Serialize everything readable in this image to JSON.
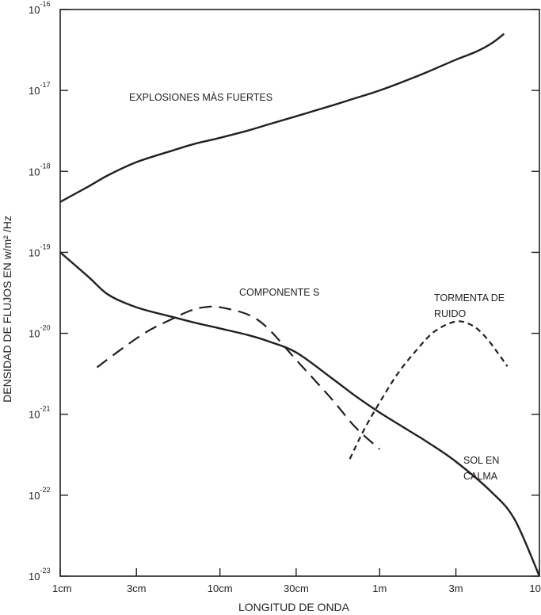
{
  "chart_data": {
    "type": "line",
    "xlabel": "LONGITUD DE ONDA",
    "ylabel": "DENSIDAD DE FLUJOS  EN   w/m² /Hz",
    "x_scale": "log",
    "y_scale": "log",
    "x_unit": "m",
    "xlim": [
      0.01,
      10
    ],
    "ylim": [
      1e-23,
      1e-16
    ],
    "grid": false,
    "legend": "none",
    "x_ticks": [
      {
        "value": 0.01,
        "label": "1cm"
      },
      {
        "value": 0.03,
        "label": "3cm"
      },
      {
        "value": 0.1,
        "label": "10cm"
      },
      {
        "value": 0.3,
        "label": "30cm"
      },
      {
        "value": 1,
        "label": "1m"
      },
      {
        "value": 3,
        "label": "3m"
      },
      {
        "value": 10,
        "label": "10m"
      }
    ],
    "y_ticks": [
      {
        "value": 1e-23,
        "base": "10",
        "exp": "-23"
      },
      {
        "value": 1e-22,
        "base": "10",
        "exp": "-22"
      },
      {
        "value": 1e-21,
        "base": "10",
        "exp": "-21"
      },
      {
        "value": 1e-20,
        "base": "10",
        "exp": "-20"
      },
      {
        "value": 1e-19,
        "base": "10",
        "exp": "-19"
      },
      {
        "value": 1e-18,
        "base": "10",
        "exp": "-18"
      },
      {
        "value": 1e-17,
        "base": "10",
        "exp": "-17"
      },
      {
        "value": 1e-16,
        "base": "10",
        "exp": "-16"
      }
    ],
    "series": [
      {
        "name": "EXPLOSIONES MÀS FUERTES",
        "label_lines": [
          "EXPLOSIONES MÀS FUERTES"
        ],
        "style": "solid",
        "x": [
          0.01,
          0.015,
          0.02,
          0.03,
          0.05,
          0.07,
          0.1,
          0.15,
          0.2,
          0.3,
          0.5,
          0.7,
          1,
          1.5,
          2,
          3,
          4,
          5,
          6
        ],
        "y": [
          4.2e-19,
          6.5e-19,
          9e-19,
          1.3e-18,
          1.8e-18,
          2.2e-18,
          2.6e-18,
          3.2e-18,
          3.8e-18,
          4.8e-18,
          6.5e-18,
          8e-18,
          1e-17,
          1.35e-17,
          1.7e-17,
          2.4e-17,
          3e-17,
          3.8e-17,
          5e-17
        ]
      },
      {
        "name": "SOL EN CALMA",
        "label_lines": [
          "SOL EN",
          "CALMA"
        ],
        "style": "solid",
        "x": [
          0.01,
          0.015,
          0.02,
          0.03,
          0.05,
          0.07,
          0.1,
          0.15,
          0.2,
          0.3,
          0.5,
          0.7,
          1,
          1.5,
          2,
          3,
          5,
          7,
          10
        ],
        "y": [
          1e-19,
          5e-20,
          3e-20,
          2.1e-20,
          1.6e-20,
          1.35e-20,
          1.15e-20,
          9.5e-21,
          8e-21,
          5.8e-21,
          2.8e-21,
          1.7e-21,
          1.05e-21,
          6.4e-22,
          4.5e-22,
          2.6e-22,
          1.1e-22,
          5e-23,
          1e-23
        ]
      },
      {
        "name": "COMPONENTE S",
        "label_lines": [
          "COMPONENTE S"
        ],
        "style": "long-dash",
        "x": [
          0.017,
          0.025,
          0.035,
          0.05,
          0.065,
          0.08,
          0.1,
          0.15,
          0.2,
          0.3,
          0.5,
          0.7,
          1
        ],
        "y": [
          3.8e-21,
          6.7e-21,
          1.05e-20,
          1.5e-20,
          1.9e-20,
          2.1e-20,
          2.1e-20,
          1.7e-20,
          1.15e-20,
          4.7e-21,
          1.55e-21,
          7e-22,
          3.7e-22
        ]
      },
      {
        "name": "TORMENTA DE RUIDO",
        "label_lines": [
          "TORMENTA DE",
          "RUIDO"
        ],
        "style": "short-dash",
        "x": [
          0.65,
          0.8,
          1,
          1.3,
          1.7,
          2.2,
          3,
          3.8,
          4.6,
          5.5,
          6.3
        ],
        "y": [
          2.8e-22,
          6.5e-22,
          1.4e-21,
          3.2e-21,
          6.2e-21,
          1.05e-20,
          1.4e-20,
          1.25e-20,
          9e-21,
          5.7e-21,
          3.9e-21
        ]
      }
    ]
  }
}
